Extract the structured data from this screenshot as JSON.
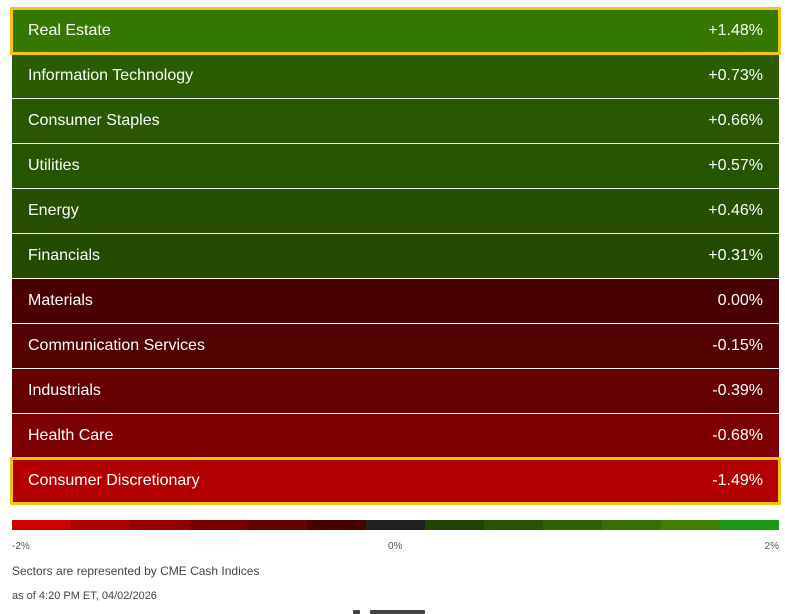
{
  "sectors": [
    {
      "name": "Real Estate",
      "change": "+1.48%",
      "color": "#347800",
      "highlighted": true
    },
    {
      "name": "Information Technology",
      "change": "+0.73%",
      "color": "#2b5c00",
      "highlighted": false
    },
    {
      "name": "Consumer Staples",
      "change": "+0.66%",
      "color": "#295800",
      "highlighted": false
    },
    {
      "name": "Utilities",
      "change": "+0.57%",
      "color": "#275400",
      "highlighted": false
    },
    {
      "name": "Energy",
      "change": "+0.46%",
      "color": "#264f00",
      "highlighted": false
    },
    {
      "name": "Financials",
      "change": "+0.31%",
      "color": "#244a00",
      "highlighted": false
    },
    {
      "name": "Materials",
      "change": "0.00%",
      "color": "#4a0000",
      "highlighted": false
    },
    {
      "name": "Communication Services",
      "change": "-0.15%",
      "color": "#520000",
      "highlighted": false
    },
    {
      "name": "Industrials",
      "change": "-0.39%",
      "color": "#640000",
      "highlighted": false
    },
    {
      "name": "Health Care",
      "change": "-0.68%",
      "color": "#7d0000",
      "highlighted": false
    },
    {
      "name": "Consumer Discretionary",
      "change": "-1.49%",
      "color": "#b30000",
      "highlighted": true
    }
  ],
  "scale": {
    "min_label": "-2%",
    "mid_label": "0%",
    "max_label": "2%",
    "colors": [
      "#cc0000",
      "#aa0000",
      "#920000",
      "#7a0000",
      "#630000",
      "#4b0000",
      "#222222",
      "#224400",
      "#2a5200",
      "#306000",
      "#377000",
      "#3f8000",
      "#1a9a10"
    ]
  },
  "footer": {
    "note": "Sectors are represented by CME Cash Indices",
    "timestamp": "as of 4:20 PM ET, 04/02/2026"
  }
}
